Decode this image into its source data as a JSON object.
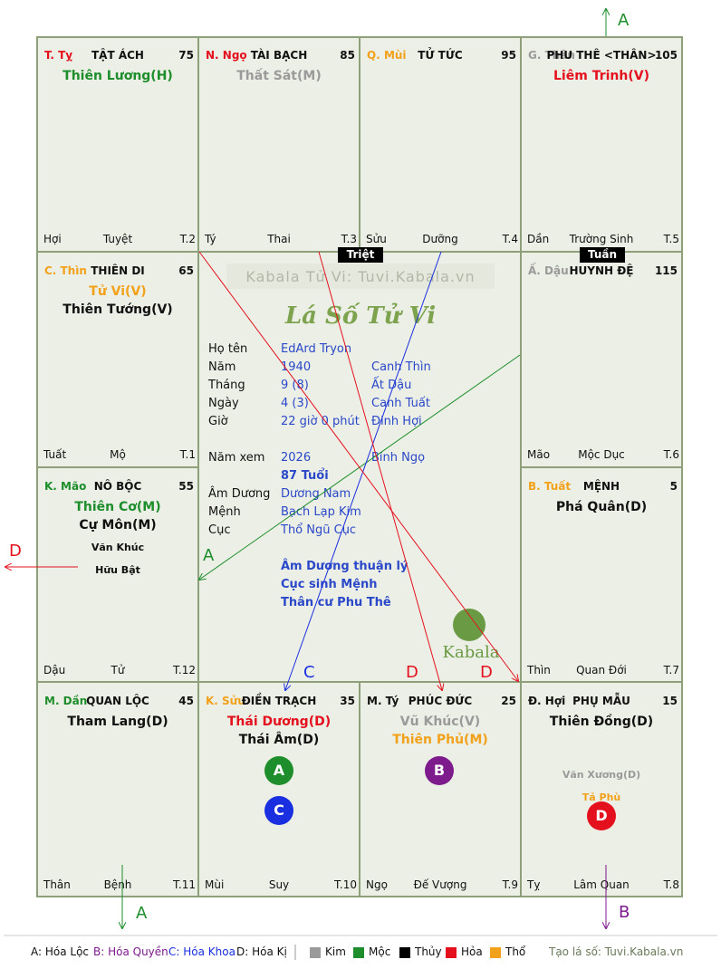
{
  "palaces": [
    {
      "branch": "T. Tỵ",
      "branch_color": "#e5101e",
      "name": "TẬT ÁCH",
      "num": "75",
      "stars": [
        {
          "t": "Thiên Lương(H)",
          "c": "green"
        }
      ],
      "minors": [],
      "foot": [
        "Hợi",
        "Tuyệt",
        "T.2"
      ]
    },
    {
      "branch": "N. Ngọ",
      "branch_color": "#e5101e",
      "name": "TÀI BẠCH",
      "num": "85",
      "stars": [
        {
          "t": "Thất Sát(M)",
          "c": "gray"
        }
      ],
      "minors": [],
      "foot": [
        "Tý",
        "Thai",
        "T.3"
      ]
    },
    {
      "branch": "Q. Mùi",
      "branch_color": "#f2a11a",
      "name": "TỬ TỨC",
      "num": "95",
      "stars": [],
      "minors": [],
      "foot": [
        "Sửu",
        "Dưỡng",
        "T.4"
      ]
    },
    {
      "branch": "G. Thân",
      "branch_color": "#9a9a9a",
      "name": "PHU THÊ <THÂN>",
      "num": "105",
      "stars": [
        {
          "t": "Liêm Trinh(V)",
          "c": "red"
        }
      ],
      "minors": [],
      "foot": [
        "Dần",
        "Trường Sinh",
        "T.5"
      ]
    },
    {
      "branch": "C. Thìn",
      "branch_color": "#f2a11a",
      "name": "THIÊN DI",
      "num": "65",
      "stars": [
        {
          "t": "Tử Vi(V)",
          "c": "orange"
        },
        {
          "t": "Thiên Tướng(V)",
          "c": "black"
        }
      ],
      "minors": [],
      "foot": [
        "Tuất",
        "Mộ",
        "T.1"
      ]
    },
    {
      "branch": "Ấ. Dậu",
      "branch_color": "#9a9a9a",
      "name": "HUYNH ĐỆ",
      "num": "115",
      "stars": [],
      "minors": [],
      "foot": [
        "Mão",
        "Mộc Dục",
        "T.6"
      ]
    },
    {
      "branch": "K. Mão",
      "branch_color": "#1d8e2b",
      "name": "NÔ BỘC",
      "num": "55",
      "stars": [
        {
          "t": "Thiên Cơ(M)",
          "c": "green"
        },
        {
          "t": "Cự Môn(M)",
          "c": "black"
        }
      ],
      "minors": [
        {
          "t": "Văn Khúc",
          "c": "black"
        },
        {
          "t": "Hữu Bật",
          "c": "black"
        }
      ],
      "foot": [
        "Dậu",
        "Tử",
        "T.12"
      ]
    },
    {
      "branch": "B. Tuất",
      "branch_color": "#f2a11a",
      "name": "MỆNH",
      "num": "5",
      "stars": [
        {
          "t": "Phá Quân(D)",
          "c": "black"
        }
      ],
      "minors": [],
      "foot": [
        "Thìn",
        "Quan Đới",
        "T.7"
      ]
    },
    {
      "branch": "M. Dần",
      "branch_color": "#1d8e2b",
      "name": "QUAN LỘC",
      "num": "45",
      "stars": [
        {
          "t": "Tham Lang(D)",
          "c": "black"
        }
      ],
      "minors": [],
      "foot": [
        "Thân",
        "Bệnh",
        "T.11"
      ]
    },
    {
      "branch": "K. Sửu",
      "branch_color": "#f2a11a",
      "name": "ĐIỀN TRẠCH",
      "num": "35",
      "stars": [
        {
          "t": "Thái Dương(D)",
          "c": "red"
        },
        {
          "t": "Thái Âm(D)",
          "c": "black"
        }
      ],
      "minors": [],
      "foot": [
        "Mùi",
        "Suy",
        "T.10"
      ]
    },
    {
      "branch": "M. Tý",
      "branch_color": "#111111",
      "name": "PHÚC ĐỨC",
      "num": "25",
      "stars": [
        {
          "t": "Vũ Khúc(V)",
          "c": "gray"
        },
        {
          "t": "Thiên Phủ(M)",
          "c": "orange"
        }
      ],
      "minors": [],
      "foot": [
        "Ngọ",
        "Đế Vượng",
        "T.9"
      ]
    },
    {
      "branch": "Đ. Hợi",
      "branch_color": "#111111",
      "name": "PHỤ MẪU",
      "num": "15",
      "stars": [
        {
          "t": "Thiên Đồng(D)",
          "c": "black"
        }
      ],
      "minors": [
        {
          "t": "Văn Xương(D)",
          "c": "gray"
        },
        {
          "t": "Tả Phù",
          "c": "orange"
        }
      ],
      "foot": [
        "Tỵ",
        "Lâm Quan",
        "T.8"
      ]
    }
  ],
  "tags": {
    "triet": "Triệt",
    "tuan": "Tuần"
  },
  "center": {
    "watermark": "Kabala Tử Vi: Tuvi.Kabala.vn",
    "title": "Lá Số Tử Vi",
    "rows": [
      {
        "label": "Họ tên",
        "v1": "EdArd Tryon",
        "v2": ""
      },
      {
        "label": "Năm",
        "v1": "1940",
        "v2": "Canh Thìn"
      },
      {
        "label": "Tháng",
        "v1": "9  (8)",
        "v2": "Ất Dậu"
      },
      {
        "label": "Ngày",
        "v1": "4  (3)",
        "v2": "Canh Tuất"
      },
      {
        "label": "Giờ",
        "v1": "22 giờ 0 phút",
        "v2": "Đinh Hợi"
      }
    ],
    "namxem_label": "Năm xem",
    "namxem_v1": "2026",
    "namxem_v2": "Bính Ngọ",
    "age": "87 Tuổi",
    "rows2": [
      {
        "label": "Âm Dương",
        "v1": "Dương Nam"
      },
      {
        "label": "Mệnh",
        "v1": "Bạch Lạp Kim"
      },
      {
        "label": "Cục",
        "v1": "Thổ Ngũ Cục"
      }
    ],
    "notes": [
      "Âm Dương thuận lý",
      "Cục sinh Mệnh",
      "Thân cư Phu Thê"
    ],
    "logo_text": "Kabala"
  },
  "badges": {
    "A": "A",
    "B": "B",
    "C": "C",
    "D": "D"
  },
  "arrow_labels": {
    "a_top": "A",
    "a_bottom": "A",
    "b_bottom": "B",
    "d_left": "D",
    "a_mid": "A",
    "c_mid": "C",
    "d_mid1": "D",
    "d_mid2": "D"
  },
  "legend": {
    "hoa_loc": "A: Hóa Lộc",
    "hoa_quyen": "B: Hóa Quyền",
    "hoa_khoa": "C: Hóa Khoa",
    "hoa_ki": "D: Hóa Kị",
    "kim": "Kim",
    "moc": "Mộc",
    "thuy": "Thủy",
    "hoa": "Hỏa",
    "tho": "Thổ",
    "site": "Tạo lá số: Tuvi.Kabala.vn"
  },
  "colors": {
    "green": "#1d8e2b",
    "purple": "#7d1a8c",
    "blue": "#1a2fe0",
    "red": "#e5101e",
    "gray": "#9a9a9a",
    "orange": "#f2a11a",
    "black": "#000000"
  }
}
